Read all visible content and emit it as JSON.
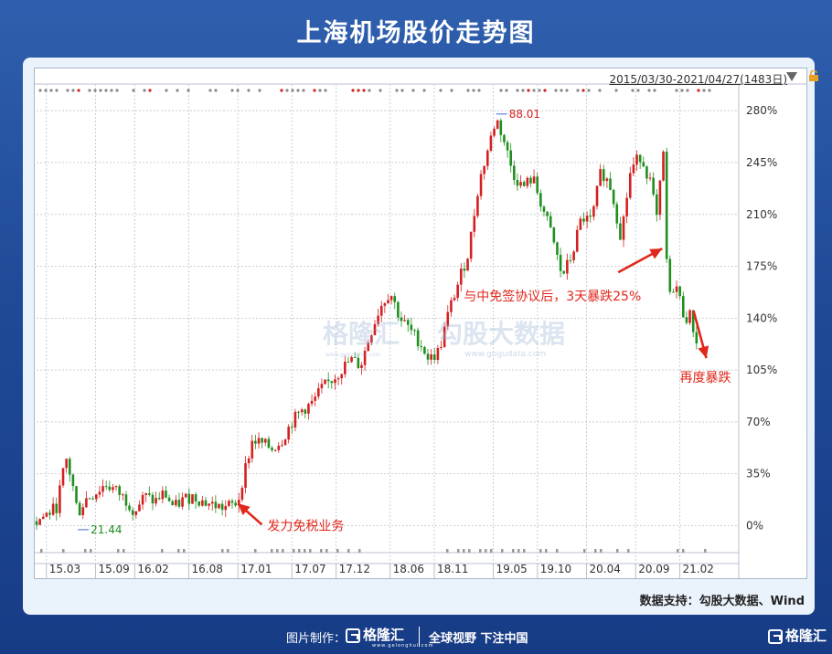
{
  "title": "上海机场股价走势图",
  "header": {
    "range_label": "2015/03/30-2021/04/27(1483日)"
  },
  "source": "数据支持：勾股大数据、Wind",
  "watermark": {
    "brand": "格隆汇",
    "brand_sub": "www.gelonghui.com",
    "data_brand": "勾股大数据",
    "data_url": "www.gogudata.com"
  },
  "footer": {
    "made_by": "图片制作：",
    "logo": "格隆汇",
    "logo_sub": "www.gelonghui.com",
    "slogan": "全球视野  下注中国",
    "corner_logo": "格隆汇"
  },
  "colors": {
    "up": "#d42020",
    "down": "#1f8f1f",
    "annotation": "#e0271b",
    "grid": "#c9ced6",
    "axis_text": "#333333"
  },
  "icons": [
    "lock-icon",
    "dropdown-arrow-icon",
    "gelonghui-logo-icon"
  ],
  "chart_data": {
    "type": "candlestick",
    "yaxis": {
      "ticks": [
        "280%",
        "245%",
        "210%",
        "175%",
        "140%",
        "105%",
        "70%",
        "35%",
        "0%"
      ],
      "values": [
        280,
        245,
        210,
        175,
        140,
        105,
        70,
        35,
        0
      ],
      "range": [
        -17,
        290
      ],
      "side": "right"
    },
    "xaxis": {
      "labels": [
        "15.03",
        "15.09",
        "16.02",
        "16.08",
        "17.01",
        "17.07",
        "17.12",
        "18.06",
        "18.11",
        "19.05",
        "19.10",
        "20.04",
        "20.09",
        "21.02"
      ],
      "positions": [
        0,
        0.5,
        0.9,
        1.45,
        1.95,
        2.5,
        2.95,
        3.5,
        3.95,
        4.55,
        5.0,
        5.5,
        6.0,
        6.45
      ],
      "range": [
        -0.1,
        7.05
      ]
    },
    "price_path": [
      [
        -0.1,
        3
      ],
      [
        0.1,
        12
      ],
      [
        0.2,
        45
      ],
      [
        0.26,
        30
      ],
      [
        0.32,
        8
      ],
      [
        0.4,
        18
      ],
      [
        0.5,
        22
      ],
      [
        0.6,
        28
      ],
      [
        0.7,
        24
      ],
      [
        0.8,
        18
      ],
      [
        0.9,
        10
      ],
      [
        1.0,
        20
      ],
      [
        1.1,
        16
      ],
      [
        1.2,
        22
      ],
      [
        1.3,
        12
      ],
      [
        1.4,
        18
      ],
      [
        1.5,
        20
      ],
      [
        1.6,
        16
      ],
      [
        1.7,
        14
      ],
      [
        1.8,
        12
      ],
      [
        1.9,
        14
      ],
      [
        1.95,
        16
      ],
      [
        2.0,
        32
      ],
      [
        2.1,
        58
      ],
      [
        2.2,
        55
      ],
      [
        2.3,
        52
      ],
      [
        2.4,
        58
      ],
      [
        2.5,
        70
      ],
      [
        2.6,
        78
      ],
      [
        2.7,
        82
      ],
      [
        2.8,
        92
      ],
      [
        2.9,
        98
      ],
      [
        3.0,
        105
      ],
      [
        3.1,
        112
      ],
      [
        3.2,
        108
      ],
      [
        3.3,
        130
      ],
      [
        3.4,
        148
      ],
      [
        3.5,
        158
      ],
      [
        3.6,
        140
      ],
      [
        3.7,
        132
      ],
      [
        3.8,
        124
      ],
      [
        3.9,
        112
      ],
      [
        4.0,
        118
      ],
      [
        4.1,
        145
      ],
      [
        4.2,
        165
      ],
      [
        4.3,
        185
      ],
      [
        4.4,
        230
      ],
      [
        4.5,
        255
      ],
      [
        4.58,
        275
      ],
      [
        4.65,
        262
      ],
      [
        4.75,
        238
      ],
      [
        4.85,
        228
      ],
      [
        4.95,
        235
      ],
      [
        5.05,
        215
      ],
      [
        5.15,
        195
      ],
      [
        5.25,
        168
      ],
      [
        5.35,
        182
      ],
      [
        5.45,
        208
      ],
      [
        5.55,
        205
      ],
      [
        5.65,
        240
      ],
      [
        5.75,
        228
      ],
      [
        5.85,
        195
      ],
      [
        5.95,
        240
      ],
      [
        6.05,
        250
      ],
      [
        6.15,
        232
      ],
      [
        6.22,
        205
      ],
      [
        6.28,
        255
      ],
      [
        6.33,
        150
      ],
      [
        6.4,
        165
      ],
      [
        6.5,
        140
      ],
      [
        6.55,
        142
      ],
      [
        6.62,
        125
      ]
    ],
    "annotations": [
      {
        "text": "88.01",
        "x": 4.58,
        "y": 279,
        "kind": "high"
      },
      {
        "text": "21.44",
        "x": 0.32,
        "y": -4,
        "kind": "low"
      },
      {
        "text": "发力免税业务",
        "x": 2.25,
        "y": -3,
        "arrow_to": [
          1.95,
          15
        ]
      },
      {
        "text": "与中免签协议后，3天暴跌25%",
        "x": 4.25,
        "y": 152,
        "arrow_to": [
          6.27,
          187
        ]
      },
      {
        "text": "再度暴跌",
        "x": 6.45,
        "y": 97,
        "arrow_to": [
          6.72,
          113
        ]
      }
    ]
  }
}
